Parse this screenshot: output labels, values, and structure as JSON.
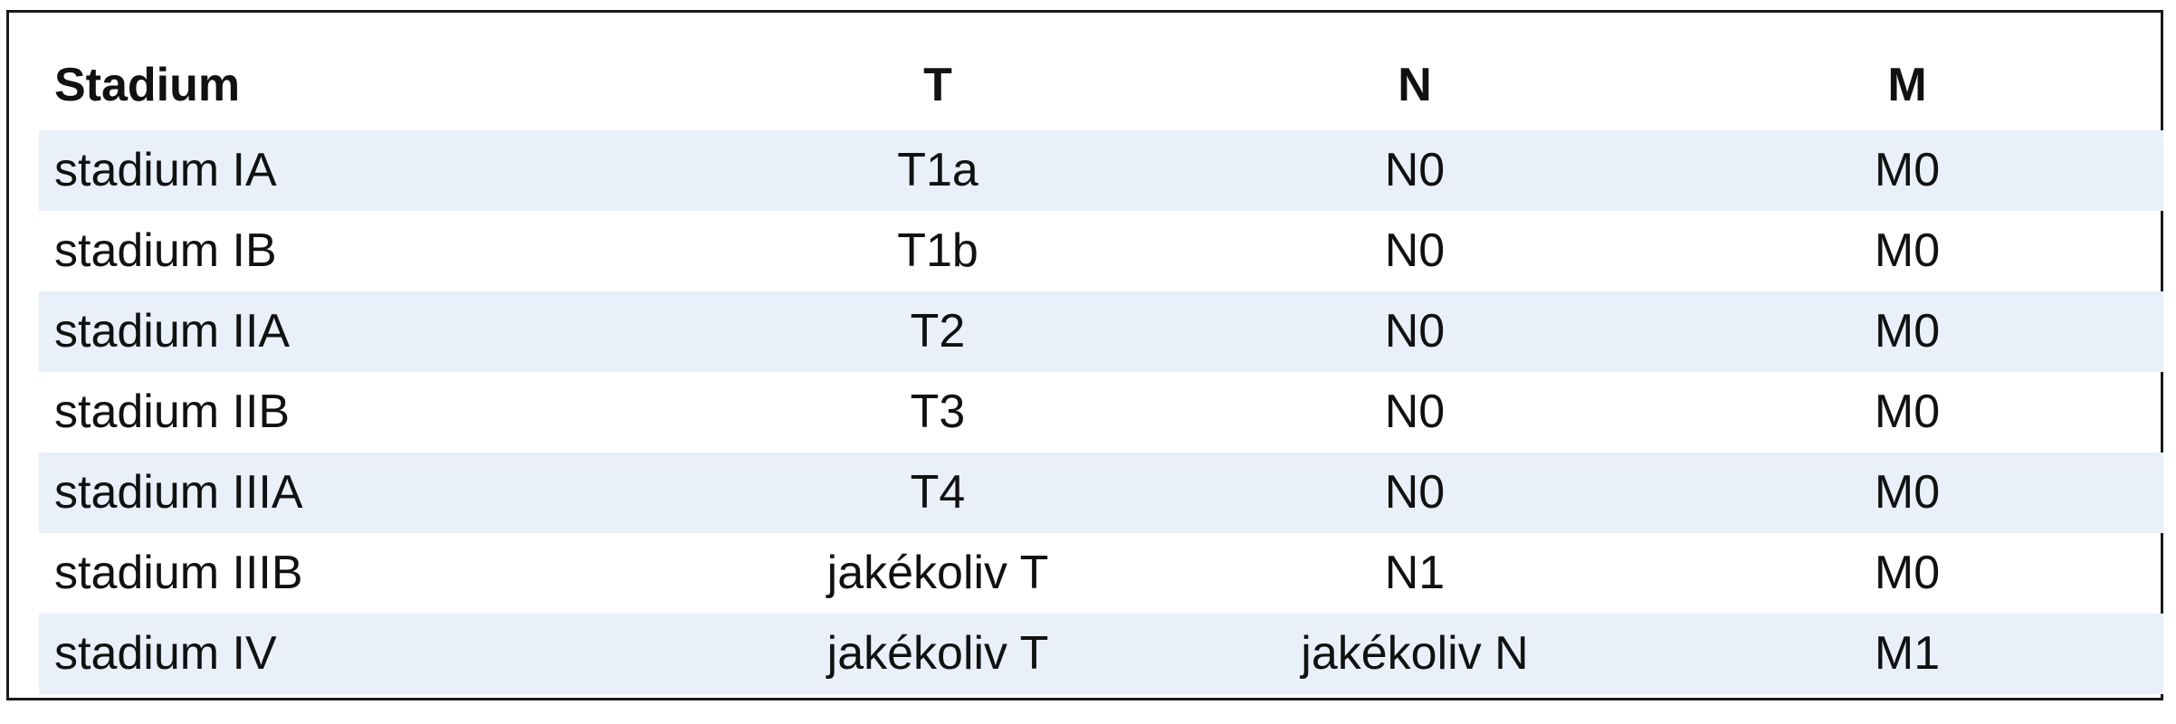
{
  "table": {
    "headers": {
      "stage": "Stadium",
      "t": "T",
      "n": "N",
      "m": "M"
    },
    "rows": [
      {
        "stage": "stadium IA",
        "t": "T1a",
        "n": "N0",
        "m": "M0"
      },
      {
        "stage": "stadium IB",
        "t": "T1b",
        "n": "N0",
        "m": "M0"
      },
      {
        "stage": "stadium IIA",
        "t": "T2",
        "n": "N0",
        "m": "M0"
      },
      {
        "stage": "stadium IIB",
        "t": "T3",
        "n": "N0",
        "m": "M0"
      },
      {
        "stage": "stadium IIIA",
        "t": "T4",
        "n": "N0",
        "m": "M0"
      },
      {
        "stage": "stadium IIIB",
        "t": "jakékoliv T",
        "n": "N1",
        "m": "M0"
      },
      {
        "stage": "stadium IV",
        "t": "jakékoliv T",
        "n": "jakékoliv N",
        "m": "M1"
      }
    ]
  },
  "colors": {
    "row_shade": "#e9f0fa",
    "border": "#1a1a1a",
    "text": "#111111"
  }
}
